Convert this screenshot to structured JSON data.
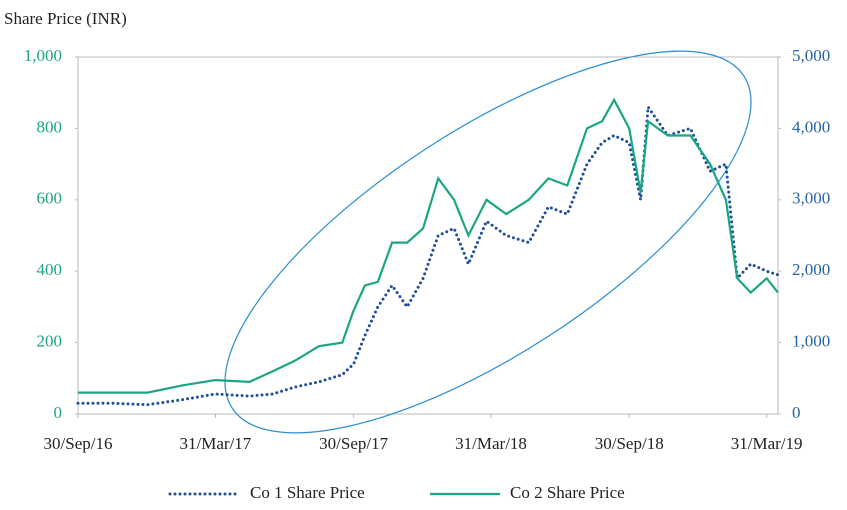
{
  "chart_data": {
    "type": "line",
    "title": "Share Price (INR)",
    "x": [
      "2016-09-30",
      "2016-11-15",
      "2016-12-31",
      "2017-02-15",
      "2017-03-31",
      "2017-05-15",
      "2017-06-15",
      "2017-07-15",
      "2017-08-15",
      "2017-09-15",
      "2017-09-30",
      "2017-10-15",
      "2017-11-01",
      "2017-11-20",
      "2017-12-10",
      "2017-12-31",
      "2018-01-20",
      "2018-02-10",
      "2018-03-01",
      "2018-03-25",
      "2018-04-20",
      "2018-05-20",
      "2018-06-15",
      "2018-07-10",
      "2018-08-05",
      "2018-08-25",
      "2018-09-10",
      "2018-09-30",
      "2018-10-15",
      "2018-10-25",
      "2018-11-20",
      "2018-12-20",
      "2019-01-15",
      "2019-02-05",
      "2019-02-20",
      "2019-03-10",
      "2019-03-31",
      "2019-04-15"
    ],
    "series": [
      {
        "name": "Co 1 Share Price",
        "color": "#1f4e9a",
        "axis": "y2",
        "dash": "dotted",
        "values": [
          150,
          150,
          130,
          200,
          280,
          250,
          280,
          380,
          450,
          550,
          700,
          1100,
          1500,
          1800,
          1500,
          1900,
          2500,
          2600,
          2100,
          2700,
          2500,
          2400,
          2900,
          2800,
          3500,
          3800,
          3900,
          3800,
          3000,
          4300,
          3900,
          4000,
          3400,
          3500,
          1900,
          2100,
          2000,
          1950
        ]
      },
      {
        "name": "Co 2 Share Price",
        "color": "#1aa583",
        "values": [
          60,
          60,
          60,
          80,
          95,
          90,
          120,
          150,
          190,
          200,
          290,
          360,
          370,
          480,
          480,
          520,
          660,
          600,
          500,
          600,
          560,
          600,
          660,
          640,
          800,
          820,
          880,
          800,
          620,
          820,
          780,
          780,
          700,
          600,
          380,
          340,
          380,
          340
        ]
      }
    ],
    "xlim": [
      "2016-09-30",
      "2019-04-15"
    ],
    "xticks": [
      {
        "value": "2016-09-30",
        "label": "30/Sep/16"
      },
      {
        "value": "2017-03-31",
        "label": "31/Mar/17"
      },
      {
        "value": "2017-09-30",
        "label": "30/Sep/17"
      },
      {
        "value": "2018-03-31",
        "label": "31/Mar/18"
      },
      {
        "value": "2018-09-30",
        "label": "30/Sep/18"
      },
      {
        "value": "2019-03-31",
        "label": "31/Mar/19"
      }
    ],
    "ylim": [
      0,
      1000
    ],
    "yticks": [
      0,
      200,
      400,
      600,
      800,
      {
        "value": 1000,
        "label": "1,000"
      }
    ],
    "y2lim": [
      0,
      5000
    ],
    "y2ticks": [
      0,
      {
        "value": 1000,
        "label": "1,000"
      },
      {
        "value": 2000,
        "label": "2,000"
      },
      {
        "value": 3000,
        "label": "3,000"
      },
      {
        "value": 4000,
        "label": "4,000"
      },
      {
        "value": 5000,
        "label": "5,000"
      }
    ],
    "legend": "bottom"
  }
}
